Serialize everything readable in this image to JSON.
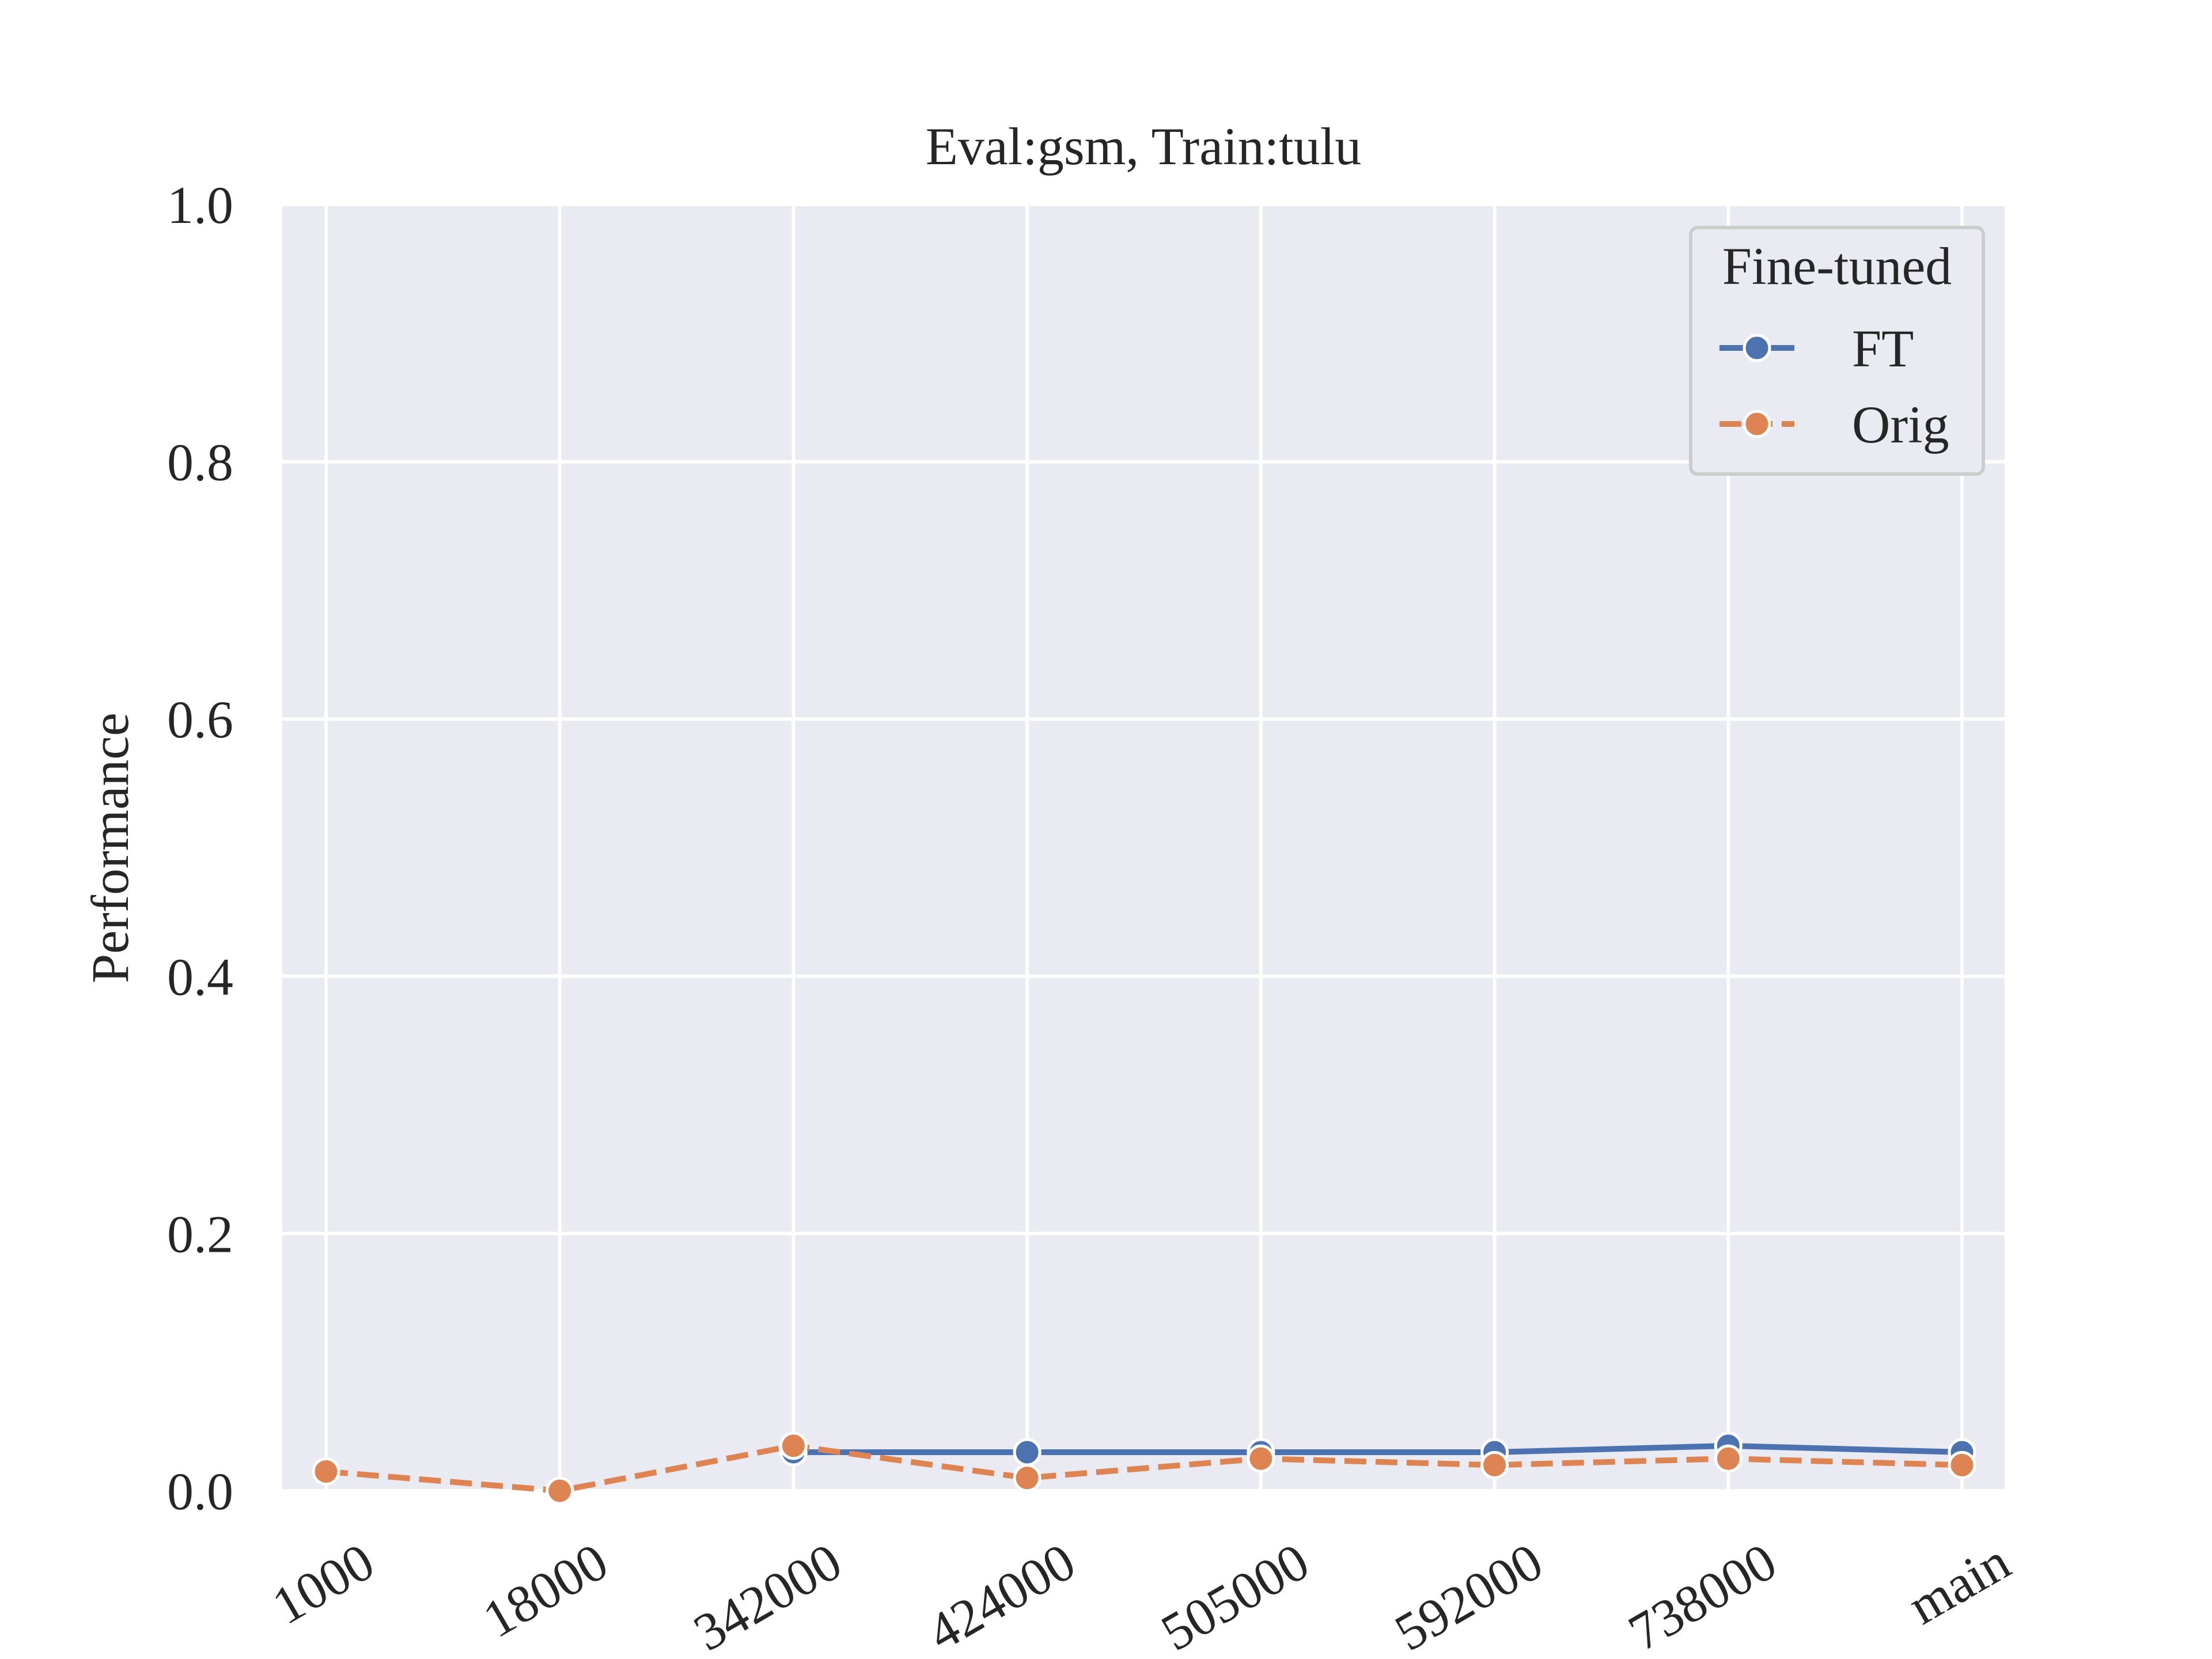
{
  "chart_data": {
    "type": "line",
    "title": "Eval:gsm, Train:tulu",
    "xlabel": "",
    "ylabel": "Performance",
    "ylim": [
      0.0,
      1.0
    ],
    "yticks": [
      "0.0",
      "0.2",
      "0.4",
      "0.6",
      "0.8",
      "1.0"
    ],
    "categories": [
      "1000",
      "18000",
      "342000",
      "424000",
      "505000",
      "592000",
      "738000",
      "main"
    ],
    "grid": true,
    "legend": {
      "title": "Fine-tuned",
      "position": "top-right"
    },
    "series": [
      {
        "name": "FT",
        "color": "#4c72b0",
        "dash": "solid",
        "values": [
          null,
          null,
          0.03,
          0.03,
          0.03,
          0.03,
          0.035,
          0.03
        ]
      },
      {
        "name": "Orig",
        "color": "#dd8452",
        "dash": "dashed",
        "values": [
          0.015,
          0.0,
          0.035,
          0.01,
          0.025,
          0.02,
          0.025,
          0.02
        ]
      }
    ]
  }
}
